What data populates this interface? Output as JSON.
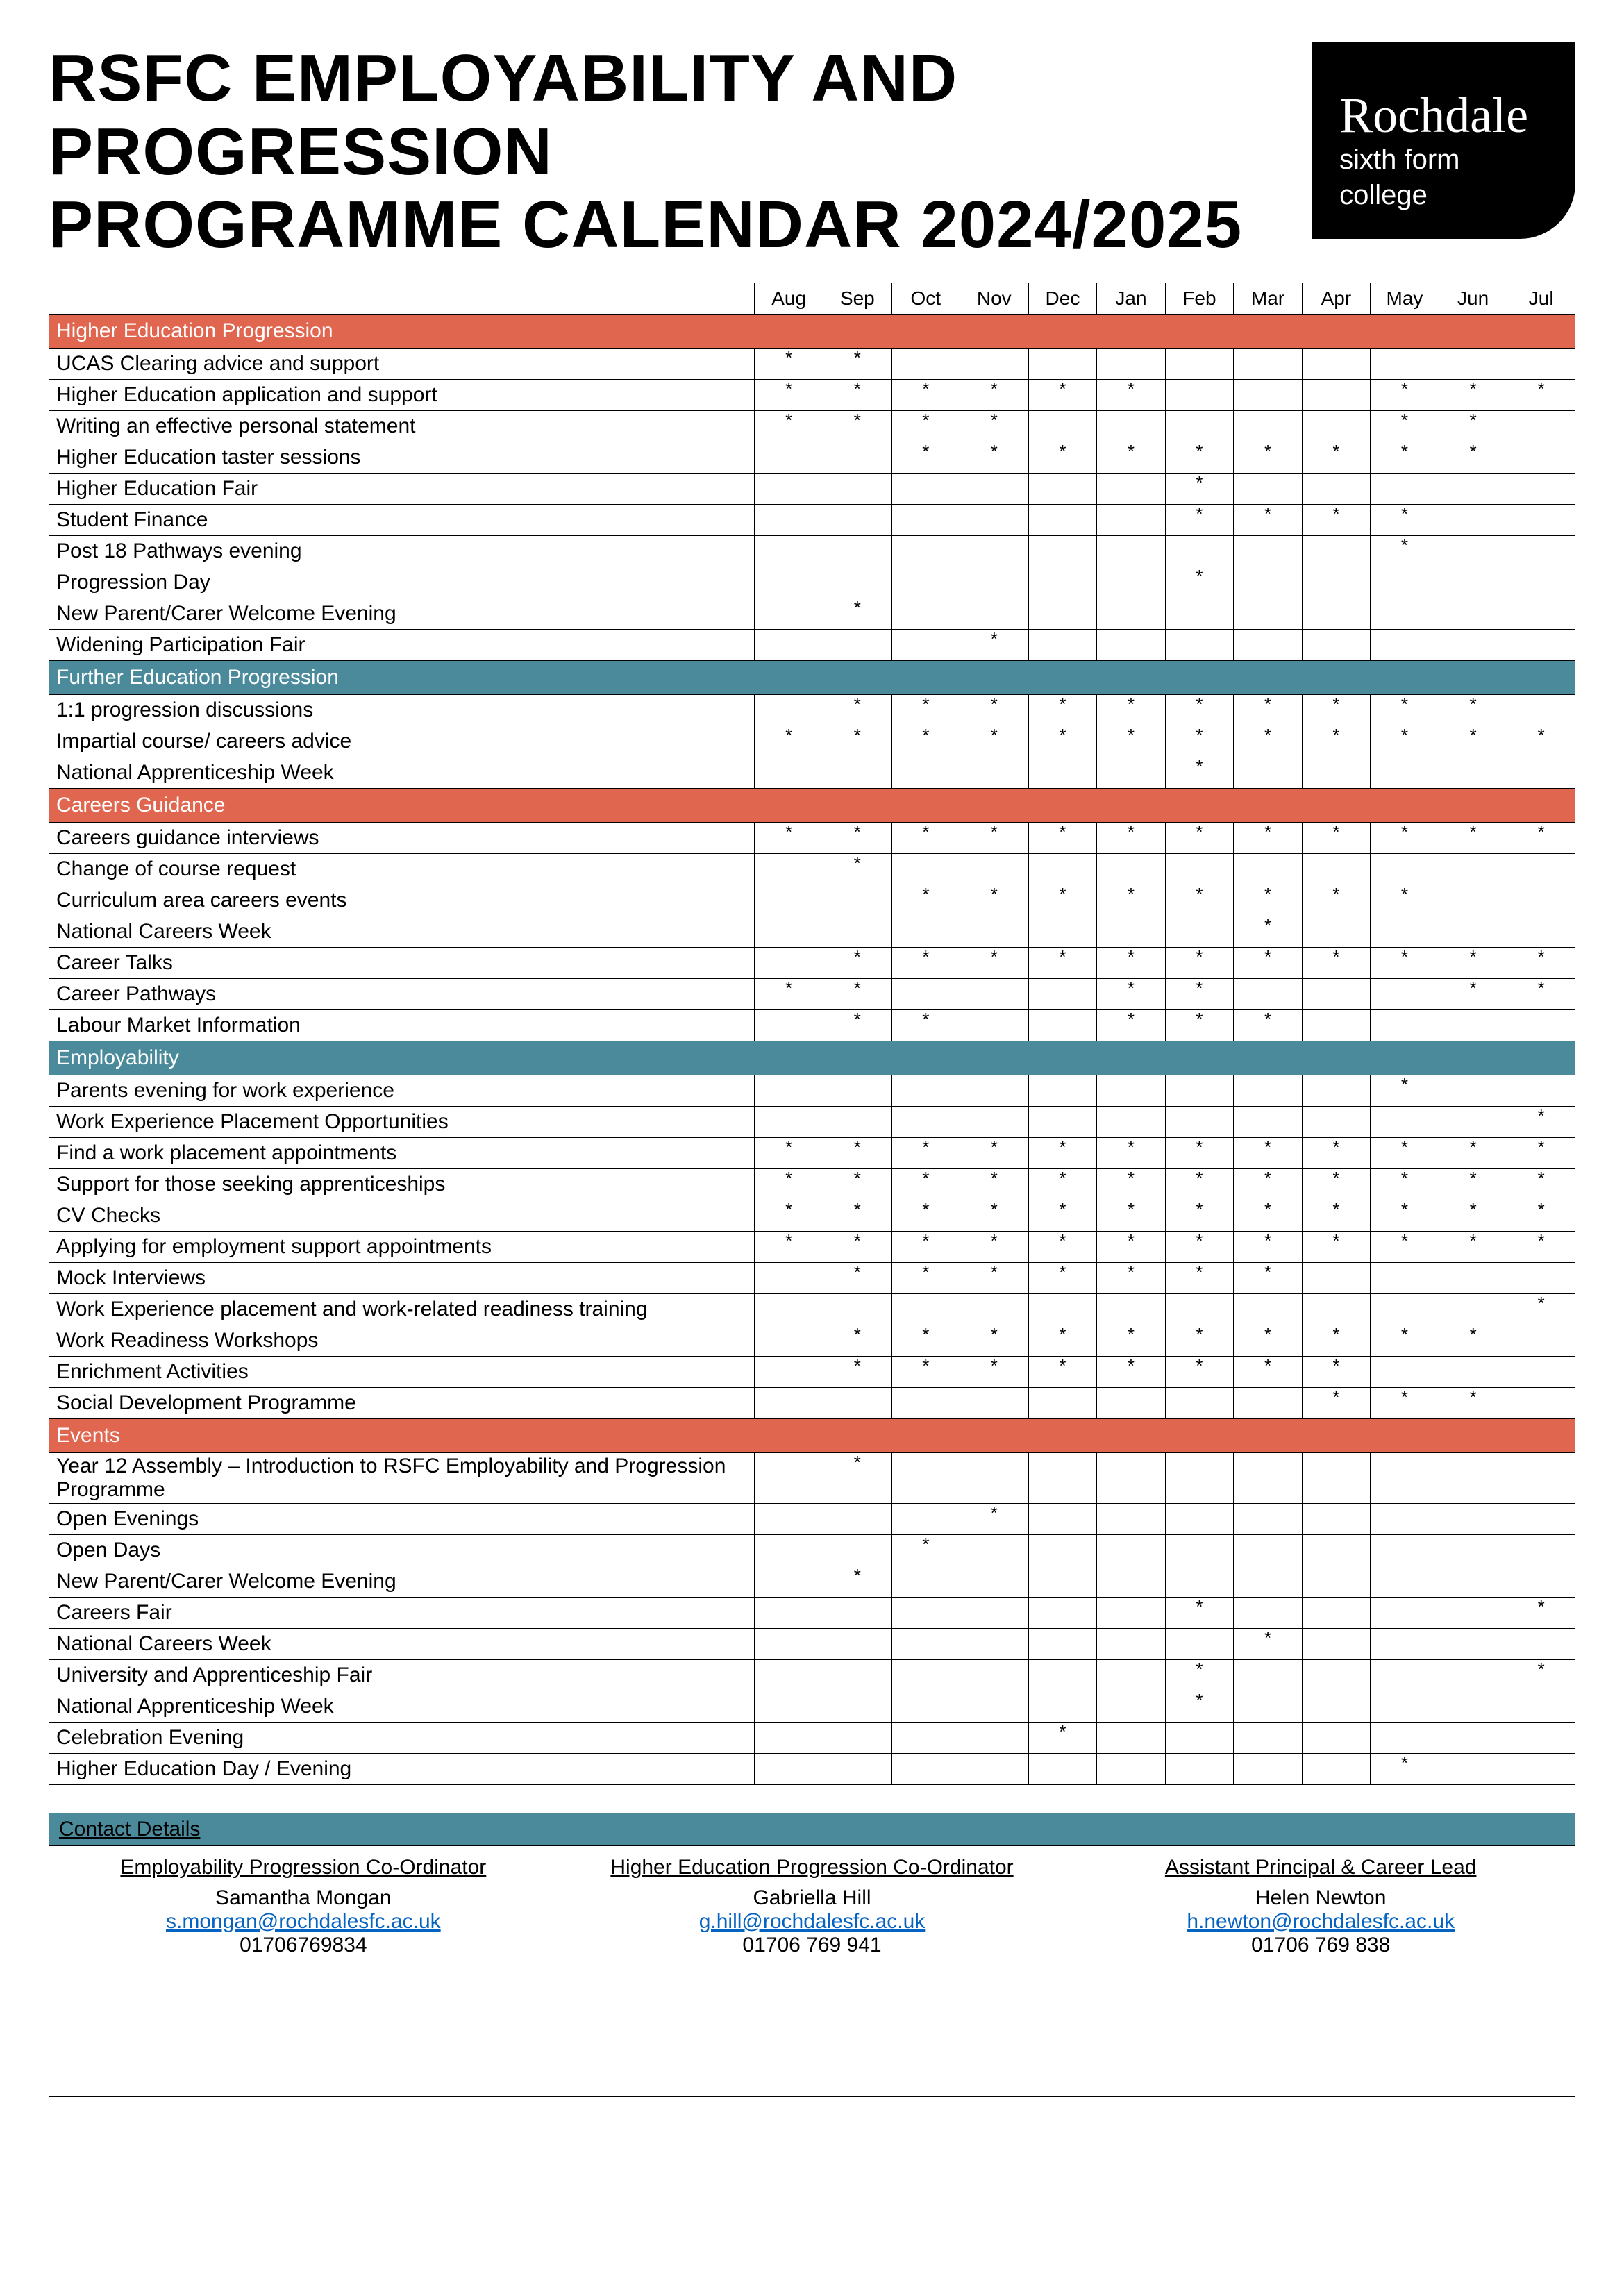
{
  "title_line1": "RSFC EMPLOYABILITY AND PROGRESSION",
  "title_line2": "PROGRAMME CALENDAR 2024/2025",
  "logo": {
    "word": "Rochdale",
    "sub1": "sixth form",
    "sub2": "college"
  },
  "months": [
    "Aug",
    "Sep",
    "Oct",
    "Nov",
    "Dec",
    "Jan",
    "Feb",
    "Mar",
    "Apr",
    "May",
    "Jun",
    "Jul"
  ],
  "section_colors": {
    "red": "#e06650",
    "teal": "#4a8a9a"
  },
  "sections": [
    {
      "title": "Higher Education Progression",
      "color": "red",
      "rows": [
        {
          "label": "UCAS Clearing advice and support",
          "marks": [
            1,
            1,
            0,
            0,
            0,
            0,
            0,
            0,
            0,
            0,
            0,
            0
          ]
        },
        {
          "label": "Higher Education application and support",
          "marks": [
            1,
            1,
            1,
            1,
            1,
            1,
            0,
            0,
            0,
            1,
            1,
            1
          ]
        },
        {
          "label": "Writing an effective personal statement",
          "marks": [
            1,
            1,
            1,
            1,
            0,
            0,
            0,
            0,
            0,
            1,
            1,
            0
          ]
        },
        {
          "label": "Higher Education taster sessions",
          "marks": [
            0,
            0,
            1,
            1,
            1,
            1,
            1,
            1,
            1,
            1,
            1,
            0
          ]
        },
        {
          "label": "Higher Education Fair",
          "marks": [
            0,
            0,
            0,
            0,
            0,
            0,
            1,
            0,
            0,
            0,
            0,
            0
          ]
        },
        {
          "label": "Student Finance",
          "marks": [
            0,
            0,
            0,
            0,
            0,
            0,
            1,
            1,
            1,
            1,
            0,
            0
          ]
        },
        {
          "label": "Post 18 Pathways evening",
          "marks": [
            0,
            0,
            0,
            0,
            0,
            0,
            0,
            0,
            0,
            1,
            0,
            0
          ]
        },
        {
          "label": "Progression Day",
          "marks": [
            0,
            0,
            0,
            0,
            0,
            0,
            1,
            0,
            0,
            0,
            0,
            0
          ]
        },
        {
          "label": "New Parent/Carer Welcome Evening",
          "marks": [
            0,
            1,
            0,
            0,
            0,
            0,
            0,
            0,
            0,
            0,
            0,
            0
          ]
        },
        {
          "label": "Widening Participation Fair",
          "marks": [
            0,
            0,
            0,
            1,
            0,
            0,
            0,
            0,
            0,
            0,
            0,
            0
          ]
        }
      ]
    },
    {
      "title": "Further Education Progression",
      "color": "teal",
      "rows": [
        {
          "label": "1:1 progression discussions",
          "marks": [
            0,
            1,
            1,
            1,
            1,
            1,
            1,
            1,
            1,
            1,
            1,
            0
          ]
        },
        {
          "label": "Impartial course/ careers advice",
          "marks": [
            1,
            1,
            1,
            1,
            1,
            1,
            1,
            1,
            1,
            1,
            1,
            1
          ]
        },
        {
          "label": "National Apprenticeship Week",
          "marks": [
            0,
            0,
            0,
            0,
            0,
            0,
            1,
            0,
            0,
            0,
            0,
            0
          ]
        }
      ]
    },
    {
      "title": "Careers Guidance",
      "color": "red",
      "rows": [
        {
          "label": "Careers guidance interviews",
          "marks": [
            1,
            1,
            1,
            1,
            1,
            1,
            1,
            1,
            1,
            1,
            1,
            1
          ]
        },
        {
          "label": "Change of course request",
          "marks": [
            0,
            1,
            0,
            0,
            0,
            0,
            0,
            0,
            0,
            0,
            0,
            0
          ]
        },
        {
          "label": "Curriculum area careers events",
          "marks": [
            0,
            0,
            1,
            1,
            1,
            1,
            1,
            1,
            1,
            1,
            0,
            0
          ]
        },
        {
          "label": "National Careers Week",
          "marks": [
            0,
            0,
            0,
            0,
            0,
            0,
            0,
            1,
            0,
            0,
            0,
            0
          ]
        },
        {
          "label": "Career Talks",
          "marks": [
            0,
            1,
            1,
            1,
            1,
            1,
            1,
            1,
            1,
            1,
            1,
            1
          ]
        },
        {
          "label": "Career Pathways",
          "marks": [
            1,
            1,
            0,
            0,
            0,
            1,
            1,
            0,
            0,
            0,
            1,
            1
          ]
        },
        {
          "label": "Labour Market Information",
          "marks": [
            0,
            1,
            1,
            0,
            0,
            1,
            1,
            1,
            0,
            0,
            0,
            0
          ]
        }
      ]
    },
    {
      "title": "Employability",
      "color": "teal",
      "rows": [
        {
          "label": "Parents evening for work experience",
          "marks": [
            0,
            0,
            0,
            0,
            0,
            0,
            0,
            0,
            0,
            1,
            0,
            0
          ]
        },
        {
          "label": "Work Experience Placement Opportunities",
          "marks": [
            0,
            0,
            0,
            0,
            0,
            0,
            0,
            0,
            0,
            0,
            0,
            1
          ]
        },
        {
          "label": "Find a work placement appointments",
          "marks": [
            1,
            1,
            1,
            1,
            1,
            1,
            1,
            1,
            1,
            1,
            1,
            1
          ]
        },
        {
          "label": "Support for those seeking apprenticeships",
          "marks": [
            1,
            1,
            1,
            1,
            1,
            1,
            1,
            1,
            1,
            1,
            1,
            1
          ]
        },
        {
          "label": "CV Checks",
          "marks": [
            1,
            1,
            1,
            1,
            1,
            1,
            1,
            1,
            1,
            1,
            1,
            1
          ]
        },
        {
          "label": "Applying for employment support appointments",
          "marks": [
            1,
            1,
            1,
            1,
            1,
            1,
            1,
            1,
            1,
            1,
            1,
            1
          ]
        },
        {
          "label": "Mock Interviews",
          "marks": [
            0,
            1,
            1,
            1,
            1,
            1,
            1,
            1,
            0,
            0,
            0,
            0
          ]
        },
        {
          "label": "Work Experience placement and work-related readiness training",
          "marks": [
            0,
            0,
            0,
            0,
            0,
            0,
            0,
            0,
            0,
            0,
            0,
            1
          ]
        },
        {
          "label": "Work Readiness Workshops",
          "marks": [
            0,
            1,
            1,
            1,
            1,
            1,
            1,
            1,
            1,
            1,
            1,
            0
          ]
        },
        {
          "label": "Enrichment Activities",
          "marks": [
            0,
            1,
            1,
            1,
            1,
            1,
            1,
            1,
            1,
            0,
            0,
            0
          ]
        },
        {
          "label": "Social Development Programme",
          "marks": [
            0,
            0,
            0,
            0,
            0,
            0,
            0,
            0,
            1,
            1,
            1,
            0
          ]
        }
      ]
    },
    {
      "title": "Events",
      "color": "red",
      "rows": [
        {
          "label": "Year 12 Assembly – Introduction to RSFC Employability and Progression Programme",
          "marks": [
            0,
            1,
            0,
            0,
            0,
            0,
            0,
            0,
            0,
            0,
            0,
            0
          ]
        },
        {
          "label": "Open Evenings",
          "marks": [
            0,
            0,
            0,
            1,
            0,
            0,
            0,
            0,
            0,
            0,
            0,
            0
          ]
        },
        {
          "label": "Open Days",
          "marks": [
            0,
            0,
            1,
            0,
            0,
            0,
            0,
            0,
            0,
            0,
            0,
            0
          ]
        },
        {
          "label": "New Parent/Carer Welcome Evening",
          "marks": [
            0,
            1,
            0,
            0,
            0,
            0,
            0,
            0,
            0,
            0,
            0,
            0
          ]
        },
        {
          "label": "Careers Fair",
          "marks": [
            0,
            0,
            0,
            0,
            0,
            0,
            1,
            0,
            0,
            0,
            0,
            1
          ]
        },
        {
          "label": "National Careers Week",
          "marks": [
            0,
            0,
            0,
            0,
            0,
            0,
            0,
            1,
            0,
            0,
            0,
            0
          ]
        },
        {
          "label": "University and Apprenticeship Fair",
          "marks": [
            0,
            0,
            0,
            0,
            0,
            0,
            1,
            0,
            0,
            0,
            0,
            1
          ]
        },
        {
          "label": "National Apprenticeship Week",
          "marks": [
            0,
            0,
            0,
            0,
            0,
            0,
            1,
            0,
            0,
            0,
            0,
            0
          ]
        },
        {
          "label": "Celebration Evening",
          "marks": [
            0,
            0,
            0,
            0,
            1,
            0,
            0,
            0,
            0,
            0,
            0,
            0
          ]
        },
        {
          "label": "Higher Education Day / Evening",
          "marks": [
            0,
            0,
            0,
            0,
            0,
            0,
            0,
            0,
            0,
            1,
            0,
            0
          ]
        }
      ]
    }
  ],
  "contact": {
    "heading": "Contact Details",
    "heading_bg": "#4a8a9a",
    "cols": [
      {
        "role": "Employability Progression Co-Ordinator",
        "name": "Samantha Mongan",
        "email": "s.mongan@rochdalesfc.ac.uk",
        "phone": "01706769834"
      },
      {
        "role": "Higher Education Progression Co-Ordinator",
        "name": "Gabriella Hill",
        "email": "g.hill@rochdalesfc.ac.uk",
        "phone": "01706 769 941"
      },
      {
        "role": "Assistant Principal & Career Lead",
        "name": "Helen Newton",
        "email": "h.newton@rochdalesfc.ac.uk",
        "phone": "01706 769 838"
      }
    ]
  }
}
